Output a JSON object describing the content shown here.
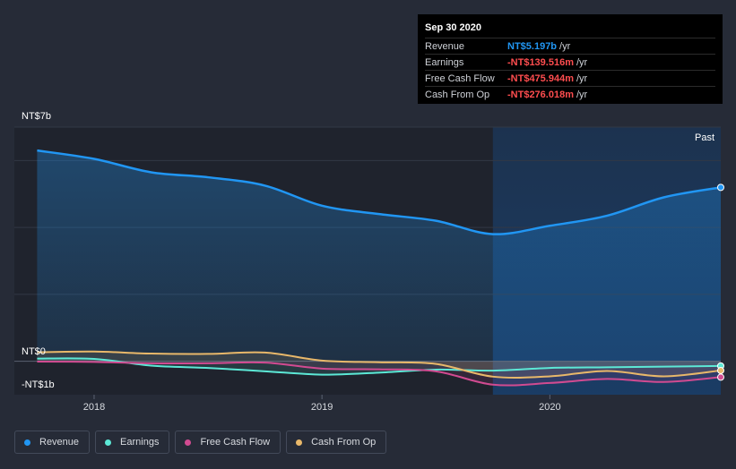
{
  "tooltip": {
    "date": "Sep 30 2020",
    "rows": [
      {
        "label": "Revenue",
        "value": "NT$5.197b",
        "unit": "/yr",
        "color": "#2196f3"
      },
      {
        "label": "Earnings",
        "value": "-NT$139.516m",
        "unit": "/yr",
        "color": "#ff4d4f"
      },
      {
        "label": "Free Cash Flow",
        "value": "-NT$475.944m",
        "unit": "/yr",
        "color": "#ff4d4f"
      },
      {
        "label": "Cash From Op",
        "value": "-NT$276.018m",
        "unit": "/yr",
        "color": "#ff4d4f"
      }
    ]
  },
  "legend": [
    {
      "label": "Revenue",
      "color": "#2196f3"
    },
    {
      "label": "Earnings",
      "color": "#5ce8d6"
    },
    {
      "label": "Free Cash Flow",
      "color": "#d14b91"
    },
    {
      "label": "Cash From Op",
      "color": "#e8b86a"
    }
  ],
  "chart_data": {
    "type": "line",
    "currency": "NT$",
    "y_labels": {
      "top": "NT$7b",
      "zero": "NT$0",
      "bottom": "-NT$1b"
    },
    "past_label": "Past",
    "ylim": [
      -1000,
      7000
    ],
    "xlim": [
      2017.65,
      2020.75
    ],
    "past_start": 2019.75,
    "x_ticks": [
      {
        "value": 2018,
        "label": "2018"
      },
      {
        "value": 2019,
        "label": "2019"
      },
      {
        "value": 2020,
        "label": "2020"
      }
    ],
    "series": [
      {
        "name": "Revenue",
        "color": "#2196f3",
        "points": [
          [
            2017.75,
            6300
          ],
          [
            2018.0,
            6050
          ],
          [
            2018.25,
            5650
          ],
          [
            2018.5,
            5500
          ],
          [
            2018.75,
            5250
          ],
          [
            2019.0,
            4650
          ],
          [
            2019.25,
            4400
          ],
          [
            2019.5,
            4200
          ],
          [
            2019.75,
            3800
          ],
          [
            2020.0,
            4050
          ],
          [
            2020.25,
            4350
          ],
          [
            2020.5,
            4900
          ],
          [
            2020.75,
            5197
          ]
        ]
      },
      {
        "name": "Earnings",
        "color": "#5ce8d6",
        "points": [
          [
            2017.75,
            80
          ],
          [
            2018.0,
            70
          ],
          [
            2018.25,
            -130
          ],
          [
            2018.5,
            -200
          ],
          [
            2018.75,
            -300
          ],
          [
            2019.0,
            -400
          ],
          [
            2019.25,
            -340
          ],
          [
            2019.5,
            -250
          ],
          [
            2019.75,
            -280
          ],
          [
            2020.0,
            -200
          ],
          [
            2020.25,
            -180
          ],
          [
            2020.5,
            -160
          ],
          [
            2020.75,
            -140
          ]
        ]
      },
      {
        "name": "Free Cash Flow",
        "color": "#d14b91",
        "points": [
          [
            2017.75,
            -10
          ],
          [
            2018.0,
            -20
          ],
          [
            2018.25,
            -60
          ],
          [
            2018.5,
            -60
          ],
          [
            2018.75,
            -40
          ],
          [
            2019.0,
            -220
          ],
          [
            2019.25,
            -240
          ],
          [
            2019.5,
            -300
          ],
          [
            2019.75,
            -700
          ],
          [
            2020.0,
            -650
          ],
          [
            2020.25,
            -530
          ],
          [
            2020.5,
            -620
          ],
          [
            2020.75,
            -476
          ]
        ]
      },
      {
        "name": "Cash From Op",
        "color": "#e8b86a",
        "points": [
          [
            2017.75,
            270
          ],
          [
            2018.0,
            290
          ],
          [
            2018.25,
            230
          ],
          [
            2018.5,
            220
          ],
          [
            2018.75,
            260
          ],
          [
            2019.0,
            20
          ],
          [
            2019.25,
            -30
          ],
          [
            2019.5,
            -80
          ],
          [
            2019.75,
            -460
          ],
          [
            2020.0,
            -450
          ],
          [
            2020.25,
            -290
          ],
          [
            2020.5,
            -450
          ],
          [
            2020.75,
            -276
          ]
        ]
      }
    ]
  }
}
